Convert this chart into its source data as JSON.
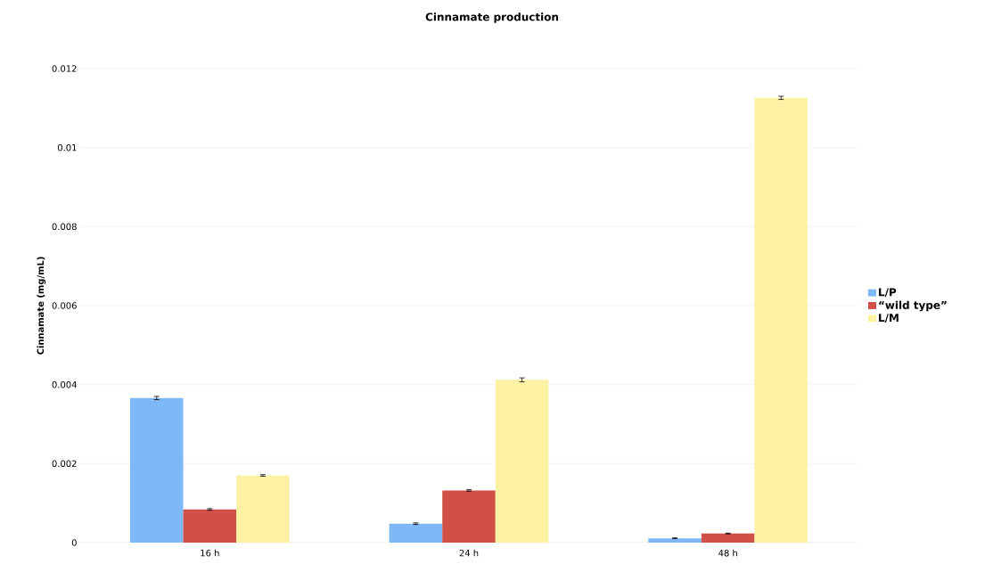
{
  "chart_data": {
    "type": "bar",
    "title": "Cinnamate production",
    "ylabel": "Cinnamate (mg/mL)",
    "categories": [
      "16 h",
      "24 h",
      "48 h"
    ],
    "series": [
      {
        "name": "L/P",
        "color": "#7fb8f6",
        "values": [
          0.00366,
          0.00048,
          0.00011
        ],
        "errors": [
          4e-05,
          2e-05,
          1e-05
        ]
      },
      {
        "name": "“wild type”",
        "color": "#d05048",
        "values": [
          0.00084,
          0.00132,
          0.00023
        ],
        "errors": [
          2e-05,
          2e-05,
          1e-05
        ]
      },
      {
        "name": "L/M",
        "color": "#fdf1a3",
        "values": [
          0.0017,
          0.00412,
          0.01126
        ],
        "errors": [
          2e-05,
          5e-05,
          4e-05
        ]
      }
    ],
    "ylim": [
      0,
      0.012
    ],
    "yticks": [
      0,
      0.002,
      0.004,
      0.006,
      0.008,
      0.01,
      0.012
    ],
    "grid": "y",
    "legend": "right"
  }
}
